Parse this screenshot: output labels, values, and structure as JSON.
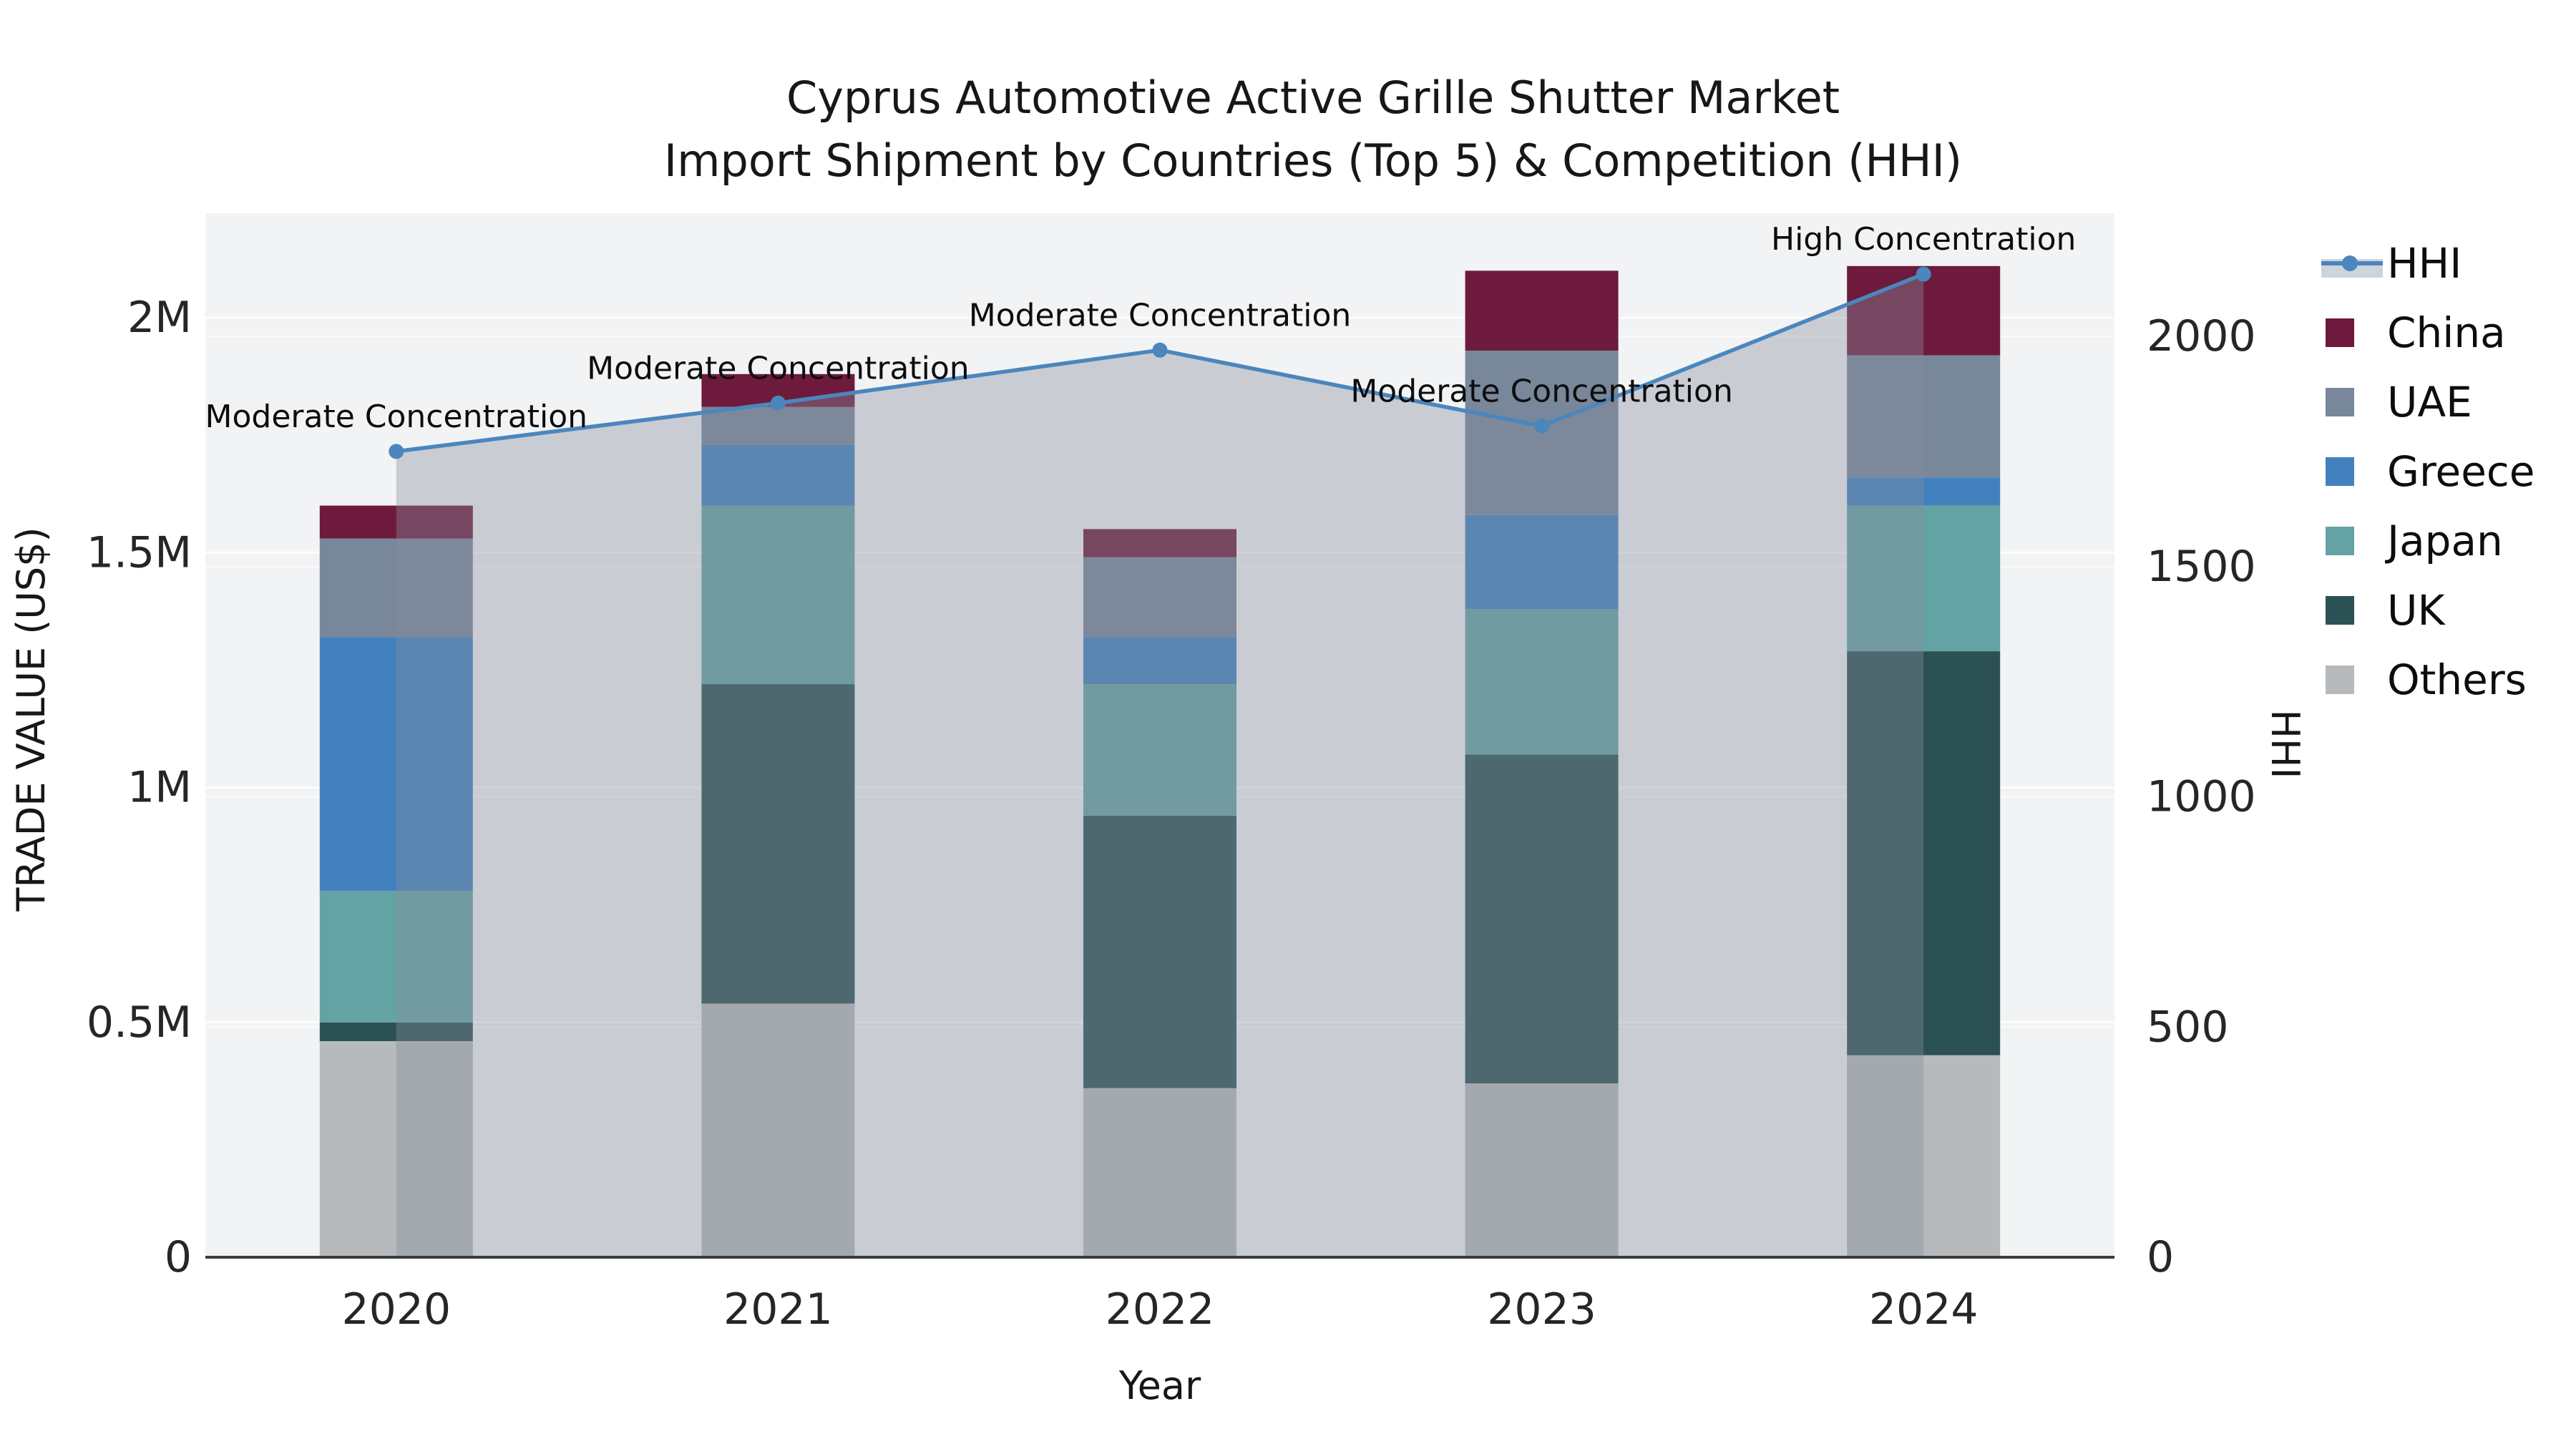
{
  "header": {
    "title_line1": "Cyprus Automotive Active Grille Shutter Market",
    "title_line2": "Import Shipment by Countries (Top 5) & Competition (HHI)"
  },
  "chart_data": {
    "type": "bar+line",
    "title": "Cyprus Automotive Active Grille Shutter Market — Import Shipment by Countries (Top 5) & Competition (HHI)",
    "xlabel": "Year",
    "ylabel": "TRADE VALUE (US$)",
    "y2label": "HHI",
    "categories": [
      "2020",
      "2021",
      "2022",
      "2023",
      "2024"
    ],
    "stack_note": "stacked bottom-to-top: Others, UK, Japan, Greece, UAE, China",
    "series": [
      {
        "name": "Others",
        "color": "#b7babc",
        "values": [
          460000,
          540000,
          360000,
          370000,
          430000
        ]
      },
      {
        "name": "UK",
        "color": "#2c5154",
        "values": [
          40000,
          680000,
          580000,
          700000,
          860000
        ]
      },
      {
        "name": "Japan",
        "color": "#64a3a4",
        "values": [
          280000,
          380000,
          280000,
          310000,
          310000
        ]
      },
      {
        "name": "Greece",
        "color": "#4381be",
        "values": [
          540000,
          130000,
          100000,
          200000,
          60000
        ]
      },
      {
        "name": "UAE",
        "color": "#78879a",
        "values": [
          210000,
          80000,
          170000,
          350000,
          260000
        ]
      },
      {
        "name": "China",
        "color": "#6e1a3c",
        "values": [
          70000,
          70000,
          60000,
          170000,
          190000
        ]
      }
    ],
    "bar_totals": [
      1600000,
      1880000,
      1550000,
      2100000,
      2110000
    ],
    "line_series": {
      "name": "HHI",
      "color": "#4b86bd",
      "marker": "circle",
      "values": [
        1750,
        1855,
        1970,
        1805,
        2135
      ],
      "area_fill": "rgba(134,142,158,0.38)"
    },
    "annotations": [
      {
        "category": "2020",
        "text": "Moderate Concentration"
      },
      {
        "category": "2021",
        "text": "Moderate Concentration"
      },
      {
        "category": "2022",
        "text": "Moderate Concentration"
      },
      {
        "category": "2023",
        "text": "Moderate Concentration"
      },
      {
        "category": "2024",
        "text": "High Concentration"
      }
    ],
    "y_ticks": [
      {
        "value": 0,
        "label": "0"
      },
      {
        "value": 500000,
        "label": "0.5M"
      },
      {
        "value": 1000000,
        "label": "1M"
      },
      {
        "value": 1500000,
        "label": "1.5M"
      },
      {
        "value": 2000000,
        "label": "2M"
      }
    ],
    "y2_ticks": [
      {
        "value": 0,
        "label": "0"
      },
      {
        "value": 500,
        "label": "500"
      },
      {
        "value": 1000,
        "label": "1000"
      },
      {
        "value": 1500,
        "label": "1500"
      },
      {
        "value": 2000,
        "label": "2000"
      }
    ],
    "ylim": [
      0,
      2222000
    ],
    "y2lim": [
      0,
      2267
    ],
    "grid": true,
    "plot_background": "#f2f3f4",
    "gridline_color": "#ffffff",
    "axisline_color": "#3a3a3a",
    "legend": {
      "position": "right",
      "order": [
        "HHI",
        "China",
        "UAE",
        "Greece",
        "Japan",
        "UK",
        "Others"
      ]
    }
  }
}
